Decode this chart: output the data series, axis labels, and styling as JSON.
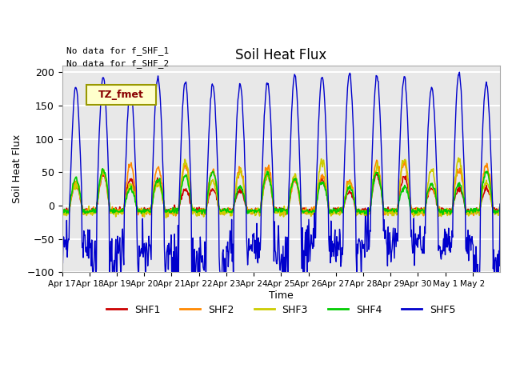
{
  "title": "Soil Heat Flux",
  "ylabel": "Soil Heat Flux",
  "xlabel": "Time",
  "annotations": [
    "No data for f_SHF_1",
    "No data for f_SHF_2"
  ],
  "legend_label": "TZ_fmet",
  "ylim": [
    -100,
    210
  ],
  "yticks": [
    -100,
    -50,
    0,
    50,
    100,
    150,
    200
  ],
  "series_colors": {
    "SHF1": "#cc0000",
    "SHF2": "#ff8800",
    "SHF3": "#cccc00",
    "SHF4": "#00cc00",
    "SHF5": "#0000cc"
  },
  "bg_color": "#e8e8e8",
  "grid_color": "#ffffff",
  "xtick_labels": [
    "Apr 17",
    "Apr 18",
    "Apr 19",
    "Apr 20",
    "Apr 21",
    "Apr 22",
    "Apr 23",
    "Apr 24",
    "Apr 25",
    "Apr 26",
    "Apr 27",
    "Apr 28",
    "Apr 29",
    "Apr 30",
    "May 1",
    "May 2"
  ]
}
